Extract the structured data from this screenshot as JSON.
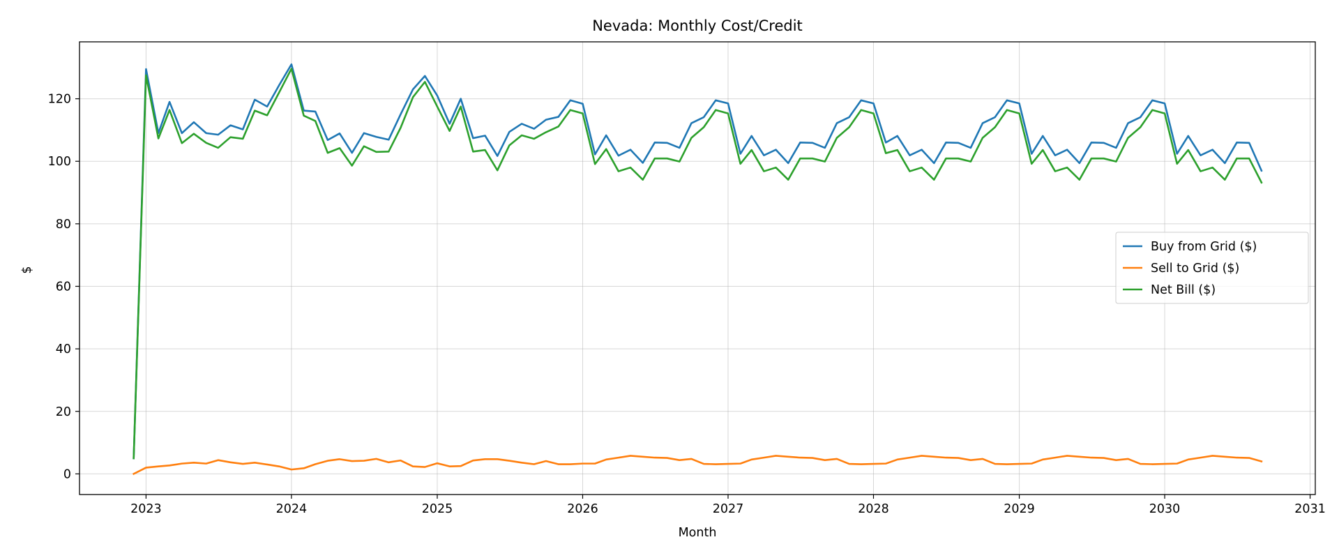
{
  "chart_data": {
    "type": "line",
    "title": "Nevada: Monthly Cost/Credit",
    "xlabel": "Month",
    "ylabel": "$",
    "x_ticks": [
      "2023",
      "2024",
      "2025",
      "2026",
      "2027",
      "2028",
      "2029",
      "2030",
      "2031"
    ],
    "y_ticks": [
      "0",
      "20",
      "40",
      "60",
      "80",
      "100",
      "120"
    ],
    "xlim": [
      "2022-07-18",
      "2031-01-14"
    ],
    "ylim": [
      -6.6,
      138.2
    ],
    "grid": true,
    "legend_position": "center-right",
    "x": [
      "2022-12-01",
      "2023-01-01",
      "2023-02-01",
      "2023-03-01",
      "2023-04-01",
      "2023-05-01",
      "2023-06-01",
      "2023-07-01",
      "2023-08-01",
      "2023-09-01",
      "2023-10-01",
      "2023-11-01",
      "2023-12-01",
      "2024-01-01",
      "2024-02-01",
      "2024-03-01",
      "2024-04-01",
      "2024-05-01",
      "2024-06-01",
      "2024-07-01",
      "2024-08-01",
      "2024-09-01",
      "2024-10-01",
      "2024-11-01",
      "2024-12-01",
      "2025-01-01",
      "2025-02-01",
      "2025-03-01",
      "2025-04-01",
      "2025-05-01",
      "2025-06-01",
      "2025-07-01",
      "2025-08-01",
      "2025-09-01",
      "2025-10-01",
      "2025-11-01",
      "2025-12-01",
      "2026-01-01",
      "2026-02-01",
      "2026-03-01",
      "2026-04-01",
      "2026-05-01",
      "2026-06-01",
      "2026-07-01",
      "2026-08-01",
      "2026-09-01",
      "2026-10-01",
      "2026-11-01",
      "2026-12-01",
      "2027-01-01",
      "2027-02-01",
      "2027-03-01",
      "2027-04-01",
      "2027-05-01",
      "2027-06-01",
      "2027-07-01",
      "2027-08-01",
      "2027-09-01",
      "2027-10-01",
      "2027-11-01",
      "2027-12-01",
      "2028-01-01",
      "2028-02-01",
      "2028-03-01",
      "2028-04-01",
      "2028-05-01",
      "2028-06-01",
      "2028-07-01",
      "2028-08-01",
      "2028-09-01",
      "2028-10-01",
      "2028-11-01",
      "2028-12-01",
      "2029-01-01",
      "2029-02-01",
      "2029-03-01",
      "2029-04-01",
      "2029-05-01",
      "2029-06-01",
      "2029-07-01",
      "2029-08-01",
      "2029-09-01",
      "2029-10-01",
      "2029-11-01",
      "2029-12-01",
      "2030-01-01",
      "2030-02-01",
      "2030-03-01",
      "2030-04-01",
      "2030-05-01",
      "2030-06-01",
      "2030-07-01",
      "2030-08-01",
      "2030-09-01"
    ],
    "series": [
      {
        "name": "Buy from Grid ($)",
        "color": "#1f77b4",
        "values": [
          5,
          129.5,
          109,
          119,
          109,
          112.5,
          109,
          108.5,
          111.5,
          110.2,
          119.7,
          117.5,
          124.3,
          131,
          116.2,
          115.9,
          106.8,
          108.9,
          102.7,
          109,
          107.8,
          106.9,
          115,
          123,
          127.3,
          121,
          112,
          120,
          107.4,
          108.2,
          101.7,
          109.4,
          112,
          110.4,
          113.3,
          114.2,
          119.5,
          118.4,
          102.2,
          108.3,
          101.8,
          103.7,
          99.5,
          106,
          105.9,
          104.3,
          112.2,
          114.1,
          119.5,
          118.5,
          102.4,
          108.1,
          101.9,
          103.7,
          99.4,
          106,
          105.9,
          104.3,
          112.2,
          114.1,
          119.5,
          118.5,
          106,
          108.1,
          101.9,
          103.7,
          99.4,
          106,
          105.9,
          104.3,
          112.2,
          114.1,
          119.5,
          118.5,
          102.4,
          108.1,
          101.9,
          103.7,
          99.4,
          106,
          105.9,
          104.3,
          112.2,
          114.1,
          119.5,
          118.5,
          102.4,
          108.1,
          101.9,
          103.7,
          99.4,
          106,
          105.9,
          97
        ]
      },
      {
        "name": "Sell to Grid ($)",
        "color": "#ff7f0e",
        "values": [
          0,
          2,
          2.4,
          2.7,
          3.3,
          3.6,
          3.3,
          4.4,
          3.7,
          3.2,
          3.6,
          3,
          2.4,
          1.4,
          1.8,
          3.1,
          4.2,
          4.7,
          4.1,
          4.2,
          4.8,
          3.7,
          4.3,
          2.4,
          2.2,
          3.4,
          2.4,
          2.5,
          4.3,
          4.7,
          4.7,
          4.2,
          3.6,
          3.1,
          4.1,
          3.1,
          3.1,
          3.3,
          3.3,
          4.6,
          5.2,
          5.8,
          5.5,
          5.2,
          5.1,
          4.4,
          4.8,
          3.2,
          3.1,
          3.2,
          3.3,
          4.6,
          5.2,
          5.8,
          5.5,
          5.2,
          5.1,
          4.4,
          4.8,
          3.2,
          3.1,
          3.2,
          3.3,
          4.6,
          5.2,
          5.8,
          5.5,
          5.2,
          5.1,
          4.4,
          4.8,
          3.2,
          3.1,
          3.2,
          3.3,
          4.6,
          5.2,
          5.8,
          5.5,
          5.2,
          5.1,
          4.4,
          4.8,
          3.2,
          3.1,
          3.2,
          3.3,
          4.6,
          5.2,
          5.8,
          5.5,
          5.2,
          5.1,
          4
        ]
      },
      {
        "name": "Net Bill ($)",
        "color": "#2ca02c",
        "values": [
          5,
          127.5,
          107.3,
          116.4,
          105.8,
          108.8,
          105.9,
          104.3,
          107.7,
          107.2,
          116.2,
          114.7,
          122,
          129.6,
          114.6,
          112.9,
          102.7,
          104.2,
          98.6,
          104.8,
          103,
          103.1,
          110.7,
          120.5,
          125.4,
          117.5,
          109.7,
          117.5,
          103.1,
          103.6,
          97.1,
          105.1,
          108.3,
          107.2,
          109.3,
          111.1,
          116.4,
          115.3,
          99.1,
          103.9,
          96.8,
          98,
          94.1,
          100.9,
          100.9,
          99.9,
          107.5,
          110.9,
          116.4,
          115.3,
          99.2,
          103.6,
          96.8,
          98,
          94.1,
          100.9,
          100.9,
          99.9,
          107.5,
          110.9,
          116.4,
          115.3,
          102.6,
          103.6,
          96.8,
          98,
          94.1,
          100.9,
          100.9,
          99.9,
          107.5,
          110.9,
          116.4,
          115.3,
          99.2,
          103.6,
          96.8,
          98,
          94.1,
          100.9,
          100.9,
          99.9,
          107.5,
          110.9,
          116.4,
          115.3,
          99.2,
          103.6,
          96.8,
          98,
          94.1,
          100.9,
          100.9,
          93.2
        ]
      }
    ]
  }
}
